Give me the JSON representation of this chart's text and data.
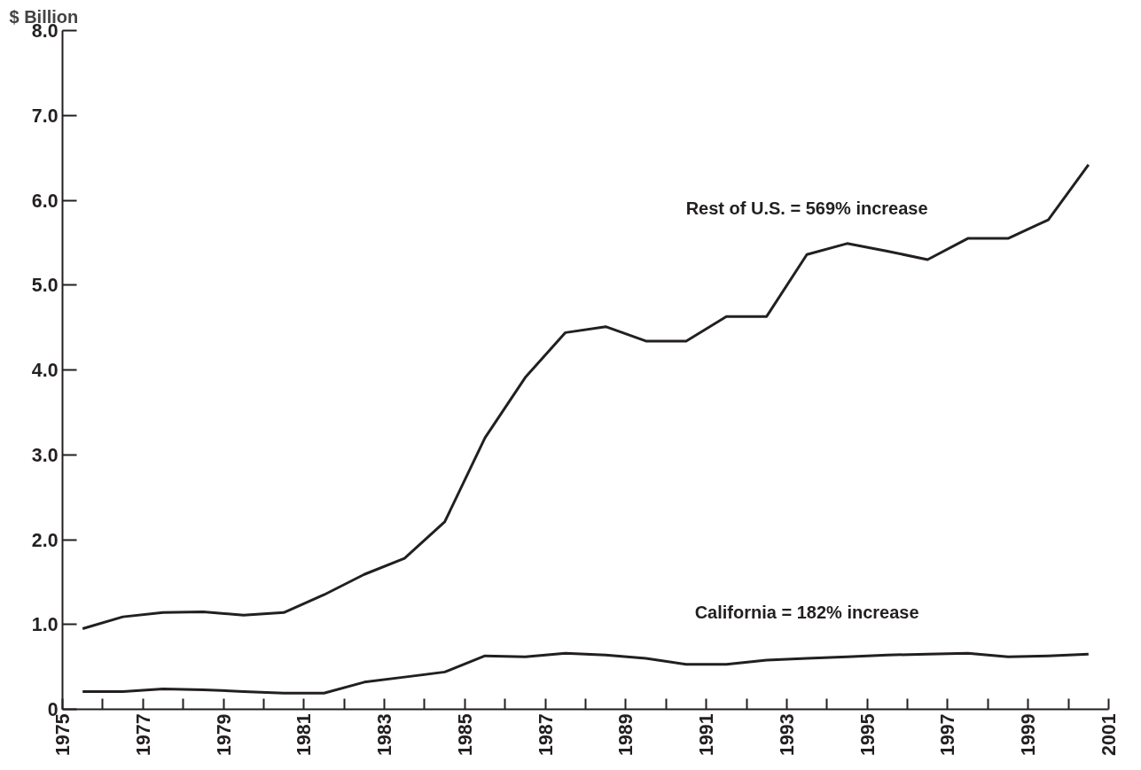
{
  "chart_data": {
    "type": "line",
    "ylabel": "$ Billion",
    "x": [
      1975.5,
      1976.5,
      1977.5,
      1978.5,
      1979.5,
      1980.5,
      1981.5,
      1982.5,
      1983.5,
      1984.5,
      1985.5,
      1986.5,
      1987.5,
      1988.5,
      1989.5,
      1990.5,
      1991.5,
      1992.5,
      1993.5,
      1994.5,
      1995.5,
      1996.5,
      1997.5,
      1998.5,
      1999.5,
      2000.5
    ],
    "series": [
      {
        "name": "Rest of U.S. = 569% increase",
        "color": "#231f20",
        "values": [
          0.95,
          1.09,
          1.14,
          1.15,
          1.11,
          1.14,
          1.35,
          1.59,
          1.78,
          2.21,
          3.2,
          3.91,
          4.44,
          4.51,
          4.34,
          4.34,
          4.63,
          4.63,
          5.36,
          5.49,
          5.4,
          5.3,
          5.55,
          5.55,
          5.77,
          6.42
        ]
      },
      {
        "name": "California = 182% increase",
        "color": "#231f20",
        "values": [
          0.21,
          0.21,
          0.24,
          0.23,
          0.21,
          0.19,
          0.19,
          0.32,
          0.38,
          0.44,
          0.63,
          0.62,
          0.66,
          0.64,
          0.6,
          0.53,
          0.53,
          0.58,
          0.6,
          0.62,
          0.64,
          0.65,
          0.66,
          0.62,
          0.63,
          0.65
        ]
      }
    ],
    "xlim": [
      1975,
      2001
    ],
    "ylim": [
      0,
      8
    ],
    "xticks": [
      1975,
      {
        "value": 1976,
        "label": null
      },
      1977,
      {
        "value": 1978,
        "label": null
      },
      1979,
      {
        "value": 1980,
        "label": null
      },
      1981,
      {
        "value": 1982,
        "label": null
      },
      1983,
      {
        "value": 1984,
        "label": null
      },
      1985,
      {
        "value": 1986,
        "label": null
      },
      1987,
      {
        "value": 1988,
        "label": null
      },
      1989,
      {
        "value": 1990,
        "label": null
      },
      1991,
      {
        "value": 1992,
        "label": null
      },
      1993,
      {
        "value": 1994,
        "label": null
      },
      1995,
      {
        "value": 1996,
        "label": null
      },
      1997,
      {
        "value": 1998,
        "label": null
      },
      1999,
      {
        "value": 2000,
        "label": null
      },
      2001
    ],
    "yticks": [
      0,
      {
        "value": 1,
        "label": "1.0"
      },
      {
        "value": 2,
        "label": "2.0"
      },
      {
        "value": 3,
        "label": "3.0"
      },
      {
        "value": 4,
        "label": "4.0"
      },
      {
        "value": 5,
        "label": "5.0"
      },
      {
        "value": 6,
        "label": "6.0"
      },
      {
        "value": 7,
        "label": "7.0"
      },
      {
        "value": 8,
        "label": "8.0"
      }
    ],
    "grid": false,
    "marker": "none",
    "line_style": "solid"
  }
}
